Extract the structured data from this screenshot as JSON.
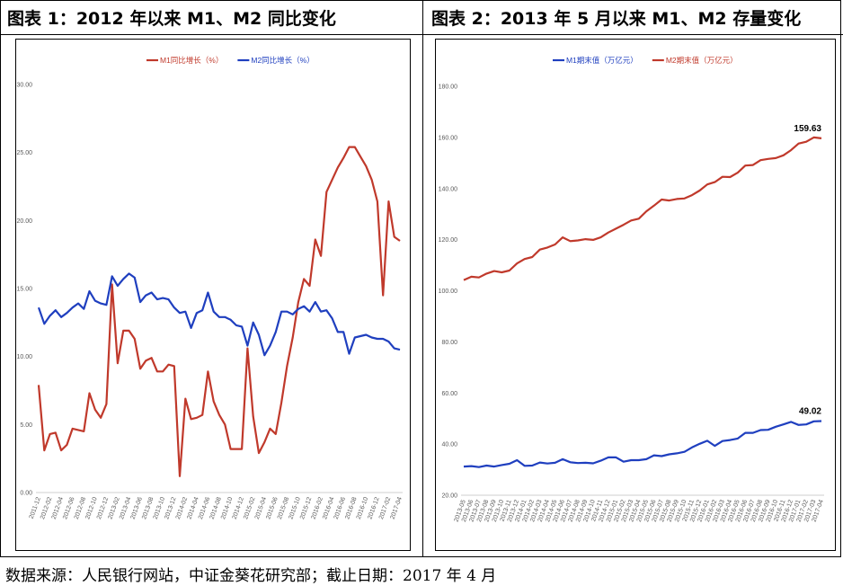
{
  "panel1": {
    "title": "图表 1：2012 年以来 M1、M2 同比变化"
  },
  "panel2": {
    "title": "图表 2：2013 年 5 月以来 M1、M2 存量变化"
  },
  "source": "数据来源：人民银行网站，中证金葵花研究部；截止日期：2017 年 4 月",
  "chart_data": [
    {
      "type": "line",
      "ylim": [
        0,
        30
      ],
      "yticks": [
        "0.00",
        "5.00",
        "10.00",
        "15.00",
        "20.00",
        "25.00",
        "30.00"
      ],
      "legend_position": "top",
      "x_labels": [
        "2011-12",
        "2012-02",
        "2012-04",
        "2012-06",
        "2012-08",
        "2012-10",
        "2012-12",
        "2013-02",
        "2013-04",
        "2013-06",
        "2013-08",
        "2013-10",
        "2013-12",
        "2014-02",
        "2014-04",
        "2014-06",
        "2014-08",
        "2014-10",
        "2014-12",
        "2015-02",
        "2015-04",
        "2015-06",
        "2015-08",
        "2015-10",
        "2015-12",
        "2016-02",
        "2016-04",
        "2016-06",
        "2016-08",
        "2016-10",
        "2016-12",
        "2017-02",
        "2017-04"
      ],
      "series": [
        {
          "name": "M1同比增长（%）",
          "color": "#C0392B",
          "values": [
            7.9,
            3.1,
            4.3,
            4.4,
            3.1,
            3.5,
            4.7,
            4.6,
            4.5,
            7.3,
            6.1,
            5.5,
            6.5,
            15.3,
            9.5,
            11.9,
            11.9,
            11.3,
            9.1,
            9.7,
            9.9,
            8.9,
            8.9,
            9.4,
            9.3,
            1.2,
            6.9,
            5.4,
            5.5,
            5.7,
            8.9,
            6.7,
            5.7,
            5.0,
            3.2,
            3.2,
            3.2,
            10.6,
            5.6,
            2.9,
            3.7,
            4.7,
            4.3,
            6.6,
            9.3,
            11.4,
            14.0,
            15.7,
            15.2,
            18.6,
            17.4,
            22.1,
            23.0,
            23.9,
            24.6,
            25.4,
            25.4,
            24.7,
            24.0,
            23.0,
            21.4,
            14.5,
            21.4,
            18.8,
            18.5
          ]
        },
        {
          "name": "M2同比增长（%）",
          "color": "#1F3FBF",
          "values": [
            13.6,
            12.4,
            13.0,
            13.4,
            12.9,
            13.2,
            13.6,
            13.9,
            13.5,
            14.8,
            14.1,
            13.9,
            13.8,
            15.9,
            15.2,
            15.7,
            16.1,
            15.8,
            14.0,
            14.5,
            14.7,
            14.2,
            14.3,
            14.2,
            13.6,
            13.2,
            13.3,
            12.1,
            13.2,
            13.4,
            14.7,
            13.3,
            12.9,
            12.9,
            12.7,
            12.3,
            12.2,
            10.8,
            12.5,
            11.6,
            10.1,
            10.8,
            11.8,
            13.3,
            13.3,
            13.1,
            13.5,
            13.7,
            13.3,
            14.0,
            13.3,
            13.4,
            12.8,
            11.8,
            11.8,
            10.2,
            11.4,
            11.5,
            11.6,
            11.4,
            11.3,
            11.3,
            11.1,
            10.6,
            10.5
          ]
        }
      ]
    },
    {
      "type": "line",
      "ylim": [
        20,
        180
      ],
      "yticks": [
        "20.00",
        "40.00",
        "60.00",
        "80.00",
        "100.00",
        "120.00",
        "140.00",
        "160.00",
        "180.00"
      ],
      "legend_position": "top",
      "x_labels": [
        "2013-05",
        "2013-06",
        "2013-07",
        "2013-08",
        "2013-09",
        "2013-10",
        "2013-11",
        "2013-12",
        "2014-01",
        "2014-02",
        "2014-03",
        "2014-04",
        "2014-05",
        "2014-06",
        "2014-07",
        "2014-08",
        "2014-09",
        "2014-10",
        "2014-11",
        "2014-12",
        "2015-01",
        "2015-02",
        "2015-03",
        "2015-04",
        "2015-05",
        "2015-06",
        "2015-07",
        "2015-08",
        "2015-09",
        "2015-10",
        "2015-11",
        "2015-12",
        "2016-01",
        "2016-02",
        "2016-03",
        "2016-04",
        "2016-05",
        "2016-06",
        "2016-07",
        "2016-08",
        "2016-09",
        "2016-10",
        "2016-11",
        "2016-12",
        "2017-01",
        "2017-02",
        "2017-03",
        "2017-04"
      ],
      "series": [
        {
          "name": "M1期末值（万亿元）",
          "color": "#1F3FBF",
          "values": [
            31.2,
            31.4,
            31.0,
            31.6,
            31.2,
            31.8,
            32.3,
            33.7,
            31.5,
            31.6,
            32.8,
            32.4,
            32.7,
            34.1,
            32.9,
            32.6,
            32.7,
            32.5,
            33.5,
            34.8,
            34.8,
            33.1,
            33.7,
            33.7,
            34.1,
            35.6,
            35.3,
            36.0,
            36.4,
            37.0,
            38.7,
            40.1,
            41.3,
            39.3,
            41.2,
            41.6,
            42.2,
            44.4,
            44.4,
            45.5,
            45.6,
            46.8,
            47.7,
            48.7,
            47.5,
            47.7,
            48.9,
            49.02
          ]
        },
        {
          "name": "M2期末值（万亿元）",
          "color": "#C0392B",
          "values": [
            104.2,
            105.5,
            105.2,
            106.7,
            107.7,
            107.2,
            107.9,
            110.7,
            112.4,
            113.2,
            116.1,
            116.9,
            118.1,
            120.9,
            119.4,
            119.7,
            120.2,
            119.9,
            120.9,
            122.8,
            124.3,
            125.8,
            127.5,
            128.2,
            131.1,
            133.3,
            135.7,
            135.3,
            135.9,
            136.1,
            137.4,
            139.2,
            141.6,
            142.5,
            144.6,
            144.5,
            146.2,
            149.0,
            149.2,
            151.1,
            151.6,
            151.9,
            153.0,
            155.0,
            157.6,
            158.3,
            160.0,
            159.63
          ]
        }
      ],
      "end_labels": [
        "49.02",
        "159.63"
      ]
    }
  ]
}
